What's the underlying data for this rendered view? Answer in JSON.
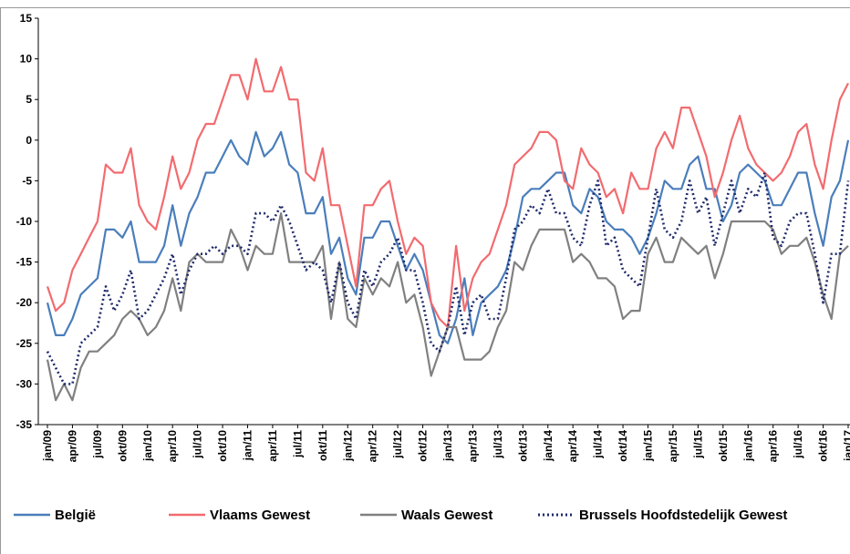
{
  "chart_data": {
    "type": "line",
    "categories": [
      "jan/09",
      null,
      null,
      "apr/09",
      null,
      null,
      "jul/09",
      null,
      null,
      "okt/09",
      null,
      null,
      "jan/10",
      null,
      null,
      "apr/10",
      null,
      null,
      "jul/10",
      null,
      null,
      "okt/10",
      null,
      null,
      "jan/11",
      null,
      null,
      "apr/11",
      null,
      null,
      "jul/11",
      null,
      null,
      "okt/11",
      null,
      null,
      "jan/12",
      null,
      null,
      "apr/12",
      null,
      null,
      "jul/12",
      null,
      null,
      "okt/12",
      null,
      null,
      "jan/13",
      null,
      null,
      "apr/13",
      null,
      null,
      "jul/13",
      null,
      null,
      "okt/13",
      null,
      null,
      "jan/14",
      null,
      null,
      "apr/14",
      null,
      null,
      "jul/14",
      null,
      null,
      "okt/14",
      null,
      null,
      "jan/15",
      null,
      null,
      "apr/15",
      null,
      null,
      "jul/15",
      null,
      null,
      "okt/15",
      null,
      null,
      "jan/16",
      null,
      null,
      "apr/16",
      null,
      null,
      "jul/16",
      null,
      null,
      "okt/16",
      null,
      null,
      "jan/17"
    ],
    "series": [
      {
        "name": "België",
        "color": "#4a7ebb",
        "dash": false,
        "values": [
          -20,
          -24,
          -24,
          -22,
          -19,
          -18,
          -17,
          -11,
          -11,
          -12,
          -10,
          -15,
          -15,
          -15,
          -13,
          -8,
          -13,
          -9,
          -7,
          -4,
          -4,
          -2,
          0,
          -2,
          -3,
          1,
          -2,
          -1,
          1,
          -3,
          -4,
          -9,
          -9,
          -7,
          -14,
          -12,
          -17,
          -19,
          -12,
          -12,
          -10,
          -10,
          -13,
          -16,
          -14,
          -16,
          -20,
          -24,
          -25,
          -22,
          -17,
          -24,
          -20,
          -19,
          -18,
          -16,
          -12,
          -7,
          -6,
          -6,
          -5,
          -4,
          -4,
          -8,
          -9,
          -6,
          -7,
          -10,
          -11,
          -11,
          -12,
          -14,
          -12,
          -9,
          -5,
          -6,
          -6,
          -3,
          -2,
          -6,
          -6,
          -10,
          -8,
          -4,
          -3,
          -4,
          -5,
          -8,
          -8,
          -6,
          -4,
          -4,
          -9,
          -13,
          -7,
          -5,
          0
        ]
      },
      {
        "name": "Vlaams Gewest",
        "color": "#f26b6f",
        "dash": false,
        "values": [
          -18,
          -21,
          -20,
          -16,
          -14,
          -12,
          -10,
          -3,
          -4,
          -4,
          -1,
          -8,
          -10,
          -11,
          -7,
          -2,
          -6,
          -4,
          0,
          2,
          2,
          5,
          8,
          8,
          5,
          10,
          6,
          6,
          9,
          5,
          5,
          -4,
          -5,
          -1,
          -8,
          -8,
          -13,
          -18,
          -8,
          -8,
          -6,
          -5,
          -10,
          -14,
          -12,
          -13,
          -20,
          -22,
          -23,
          -13,
          -21,
          -17,
          -15,
          -14,
          -11,
          -8,
          -3,
          -2,
          -1,
          1,
          1,
          0,
          -5,
          -6,
          -1,
          -3,
          -4,
          -7,
          -6,
          -9,
          -4,
          -6,
          -6,
          -1,
          1,
          -1,
          4,
          4,
          1,
          -2,
          -7,
          -4,
          0,
          3,
          -1,
          -3,
          -4,
          -5,
          -4,
          -2,
          1,
          2,
          -3,
          -6,
          0,
          5,
          7
        ]
      },
      {
        "name": "Waals Gewest",
        "color": "#808080",
        "dash": false,
        "values": [
          -27,
          -32,
          -30,
          -32,
          -28,
          -26,
          -26,
          -25,
          -24,
          -22,
          -21,
          -22,
          -24,
          -23,
          -21,
          -17,
          -21,
          -15,
          -14,
          -15,
          -15,
          -15,
          -11,
          -13,
          -16,
          -13,
          -14,
          -14,
          -9,
          -15,
          -15,
          -15,
          -15,
          -13,
          -22,
          -15,
          -22,
          -23,
          -17,
          -19,
          -17,
          -18,
          -15,
          -20,
          -19,
          -23,
          -29,
          -26,
          -23,
          -23,
          -27,
          -27,
          -27,
          -26,
          -23,
          -21,
          -15,
          -16,
          -13,
          -11,
          -11,
          -11,
          -11,
          -15,
          -14,
          -15,
          -17,
          -17,
          -18,
          -22,
          -21,
          -21,
          -14,
          -12,
          -15,
          -15,
          -12,
          -13,
          -14,
          -13,
          -17,
          -14,
          -10,
          -10,
          -10,
          -10,
          -10,
          -11,
          -14,
          -13,
          -13,
          -12,
          -15,
          -19,
          -22,
          -14,
          -13
        ]
      },
      {
        "name": "Brussels Hoofdstedelijk Gewest",
        "color": "#1f2a6b",
        "dash": true,
        "values": [
          -26,
          -28,
          -30,
          -30,
          -25,
          -24,
          -23,
          -18,
          -21,
          -19,
          -16,
          -22,
          -21,
          -19,
          -17,
          -14,
          -19,
          -16,
          -14,
          -14,
          -13,
          -14,
          -13,
          -13,
          -14,
          -9,
          -9,
          -10,
          -8,
          -10,
          -13,
          -16,
          -15,
          -16,
          -20,
          -15,
          -20,
          -22,
          -16,
          -18,
          -15,
          -14,
          -12,
          -16,
          -16,
          -20,
          -25,
          -26,
          -23,
          -18,
          -24,
          -20,
          -19,
          -22,
          -22,
          -17,
          -11,
          -10,
          -8,
          -9,
          -6,
          -9,
          -9,
          -12,
          -13,
          -8,
          -5,
          -13,
          -12,
          -16,
          -17,
          -18,
          -12,
          -6,
          -11,
          -12,
          -10,
          -5,
          -9,
          -7,
          -13,
          -9,
          -5,
          -9,
          -6,
          -7,
          -4,
          -12,
          -13,
          -10,
          -9,
          -9,
          -14,
          -20,
          -14,
          -14,
          -5
        ]
      }
    ],
    "ylim": [
      -35,
      15
    ],
    "yticks": [
      15,
      10,
      5,
      0,
      -5,
      -10,
      -15,
      -20,
      -25,
      -30,
      -35
    ]
  }
}
